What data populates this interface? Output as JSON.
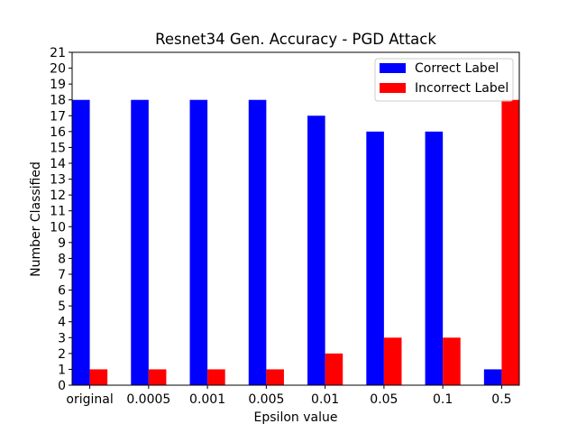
{
  "chart_data": {
    "type": "bar",
    "title": "Resnet34 Gen. Accuracy - PGD Attack",
    "xlabel": "Epsilon value",
    "ylabel": "Number Classified",
    "categories": [
      "original",
      "0.0005",
      "0.001",
      "0.005",
      "0.01",
      "0.05",
      "0.1",
      "0.5"
    ],
    "series": [
      {
        "name": "Correct Label",
        "color": "#0000ff",
        "values": [
          18,
          18,
          18,
          18,
          17,
          16,
          16,
          1
        ]
      },
      {
        "name": "Incorrect Label",
        "color": "#ff0000",
        "values": [
          1,
          1,
          1,
          1,
          2,
          3,
          3,
          18
        ]
      }
    ],
    "ylim": [
      0,
      21
    ],
    "yticks": [
      0,
      1,
      2,
      3,
      4,
      5,
      6,
      7,
      8,
      9,
      10,
      11,
      12,
      13,
      14,
      15,
      16,
      17,
      18,
      19,
      20,
      21
    ],
    "grid": false,
    "legend_position": "top-right"
  }
}
